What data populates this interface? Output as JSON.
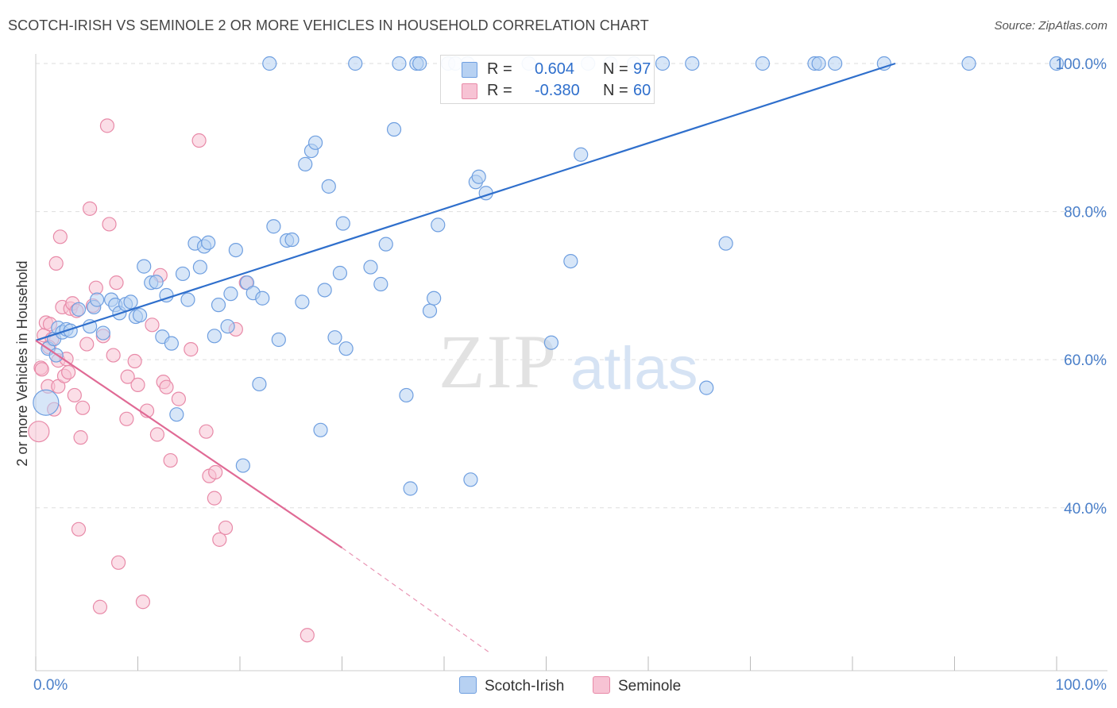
{
  "title": "SCOTCH-IRISH VS SEMINOLE 2 OR MORE VEHICLES IN HOUSEHOLD CORRELATION CHART",
  "source": "Source: ZipAtlas.com",
  "watermark": {
    "zip": "ZIP",
    "atlas": "atlas"
  },
  "legend": {
    "series1": {
      "r_label": "R =",
      "r_value": "0.604",
      "n_label": "N =",
      "n_value": "97"
    },
    "series2": {
      "r_label": "R =",
      "r_value": "-0.380",
      "n_label": "N =",
      "n_value": "60"
    }
  },
  "bottom_legend": {
    "series1": "Scotch-Irish",
    "series2": "Seminole"
  },
  "colors": {
    "blue_fill": "#b7d1f2",
    "blue_stroke": "#6f9fe0",
    "blue_line": "#2f6fcc",
    "pink_fill": "#f7c3d4",
    "pink_stroke": "#e88aa8",
    "pink_line": "#e06a95",
    "tick_text": "#4a7fc9",
    "grid": "#dddddd"
  },
  "chart_data": {
    "type": "scatter",
    "title": "SCOTCH-IRISH VS SEMINOLE 2 OR MORE VEHICLES IN HOUSEHOLD CORRELATION CHART",
    "xlabel": "",
    "ylabel": "2 or more Vehicles in Household",
    "xlim": [
      0,
      100
    ],
    "ylim": [
      18,
      100
    ],
    "x_tick_labels": [
      "0.0%",
      "100.0%"
    ],
    "y_ticks": [
      40,
      60,
      80,
      100
    ],
    "y_tick_labels": [
      "40.0%",
      "60.0%",
      "80.0%",
      "100.0%"
    ],
    "series": [
      {
        "name": "Scotch-Irish",
        "R": 0.604,
        "N": 97,
        "trend": {
          "x": [
            0,
            84.2
          ],
          "y": [
            62.6,
            100
          ]
        },
        "points": [
          [
            1.2,
            61.5
          ],
          [
            1.8,
            62.8
          ],
          [
            2.2,
            64.3
          ],
          [
            2.6,
            63.7
          ],
          [
            3.0,
            64.1
          ],
          [
            3.4,
            63.9
          ],
          [
            4.2,
            66.8
          ],
          [
            5.3,
            64.5
          ],
          [
            5.7,
            67.1
          ],
          [
            6.0,
            68.1
          ],
          [
            6.6,
            63.6
          ],
          [
            7.4,
            68.1
          ],
          [
            7.8,
            67.4
          ],
          [
            8.2,
            66.3
          ],
          [
            8.8,
            67.5
          ],
          [
            9.3,
            67.8
          ],
          [
            9.8,
            65.8
          ],
          [
            10.2,
            66.0
          ],
          [
            10.6,
            72.6
          ],
          [
            11.3,
            70.4
          ],
          [
            11.8,
            70.5
          ],
          [
            12.4,
            63.1
          ],
          [
            12.8,
            68.7
          ],
          [
            13.3,
            62.2
          ],
          [
            13.8,
            52.6
          ],
          [
            14.4,
            71.6
          ],
          [
            14.9,
            68.1
          ],
          [
            15.6,
            75.7
          ],
          [
            16.1,
            72.5
          ],
          [
            16.5,
            75.3
          ],
          [
            16.9,
            75.8
          ],
          [
            17.5,
            63.2
          ],
          [
            17.9,
            67.4
          ],
          [
            18.8,
            64.5
          ],
          [
            19.1,
            68.9
          ],
          [
            19.6,
            74.8
          ],
          [
            20.3,
            45.7
          ],
          [
            20.7,
            70.4
          ],
          [
            21.3,
            69.0
          ],
          [
            21.9,
            56.7
          ],
          [
            22.2,
            68.3
          ],
          [
            22.9,
            100
          ],
          [
            23.3,
            78.0
          ],
          [
            23.8,
            62.7
          ],
          [
            24.6,
            76.1
          ],
          [
            25.1,
            76.2
          ],
          [
            26.1,
            67.8
          ],
          [
            26.4,
            86.4
          ],
          [
            27.0,
            88.2
          ],
          [
            27.4,
            89.3
          ],
          [
            27.9,
            50.5
          ],
          [
            28.3,
            69.4
          ],
          [
            28.7,
            83.4
          ],
          [
            29.3,
            63.0
          ],
          [
            29.8,
            71.7
          ],
          [
            30.1,
            78.4
          ],
          [
            30.4,
            61.5
          ],
          [
            31.3,
            100
          ],
          [
            32.8,
            72.5
          ],
          [
            33.8,
            70.2
          ],
          [
            34.3,
            75.6
          ],
          [
            35.1,
            91.1
          ],
          [
            35.6,
            100
          ],
          [
            36.3,
            55.2
          ],
          [
            36.7,
            42.6
          ],
          [
            37.3,
            100
          ],
          [
            37.6,
            100
          ],
          [
            38.6,
            66.6
          ],
          [
            39.0,
            68.3
          ],
          [
            39.4,
            78.2
          ],
          [
            40.4,
            100
          ],
          [
            41.1,
            100
          ],
          [
            42.3,
            100
          ],
          [
            42.6,
            43.8
          ],
          [
            43.1,
            84.0
          ],
          [
            43.4,
            84.7
          ],
          [
            44.1,
            82.5
          ],
          [
            48.3,
            100
          ],
          [
            50.5,
            62.3
          ],
          [
            52.4,
            73.3
          ],
          [
            53.4,
            87.7
          ],
          [
            54.1,
            100
          ],
          [
            56.3,
            100
          ],
          [
            58.6,
            100
          ],
          [
            61.4,
            100
          ],
          [
            64.3,
            100
          ],
          [
            65.7,
            56.2
          ],
          [
            67.6,
            75.7
          ],
          [
            71.2,
            100
          ],
          [
            76.3,
            100
          ],
          [
            76.7,
            100
          ],
          [
            78.3,
            100
          ],
          [
            83.1,
            100
          ],
          [
            91.4,
            100
          ],
          [
            100,
            100
          ],
          [
            1.0,
            54.2
          ],
          [
            2.0,
            60.6
          ]
        ]
      },
      {
        "name": "Seminole",
        "R": -0.38,
        "N": 60,
        "trend": {
          "x": [
            0,
            30
          ],
          "y": [
            62.6,
            34.6
          ]
        },
        "trend_dashed": {
          "x": [
            30,
            44.4
          ],
          "y": [
            34.6,
            20.5
          ]
        },
        "points": [
          [
            0.3,
            50.3
          ],
          [
            0.5,
            58.9
          ],
          [
            0.8,
            63.3
          ],
          [
            1.0,
            65.0
          ],
          [
            1.2,
            56.4
          ],
          [
            1.4,
            64.8
          ],
          [
            1.6,
            62.8
          ],
          [
            1.8,
            53.3
          ],
          [
            2.0,
            73.0
          ],
          [
            2.2,
            59.9
          ],
          [
            2.2,
            56.4
          ],
          [
            2.4,
            76.6
          ],
          [
            2.6,
            67.1
          ],
          [
            2.8,
            57.8
          ],
          [
            3.0,
            60.1
          ],
          [
            3.2,
            58.3
          ],
          [
            3.4,
            66.9
          ],
          [
            3.6,
            67.6
          ],
          [
            3.8,
            55.2
          ],
          [
            4.0,
            66.6
          ],
          [
            4.2,
            37.1
          ],
          [
            4.4,
            49.5
          ],
          [
            4.6,
            53.5
          ],
          [
            5.0,
            62.1
          ],
          [
            5.3,
            80.4
          ],
          [
            5.6,
            67.3
          ],
          [
            5.9,
            69.7
          ],
          [
            6.3,
            26.6
          ],
          [
            6.6,
            63.2
          ],
          [
            7.0,
            91.6
          ],
          [
            7.2,
            78.3
          ],
          [
            7.6,
            60.6
          ],
          [
            7.9,
            70.4
          ],
          [
            8.1,
            32.6
          ],
          [
            8.9,
            52.0
          ],
          [
            9.0,
            57.7
          ],
          [
            9.7,
            59.8
          ],
          [
            10.0,
            56.6
          ],
          [
            10.5,
            27.3
          ],
          [
            10.9,
            53.1
          ],
          [
            11.4,
            64.7
          ],
          [
            11.9,
            49.9
          ],
          [
            12.2,
            71.4
          ],
          [
            12.5,
            57.0
          ],
          [
            12.8,
            56.3
          ],
          [
            13.2,
            46.4
          ],
          [
            14.0,
            54.7
          ],
          [
            15.2,
            61.4
          ],
          [
            16.0,
            89.6
          ],
          [
            16.7,
            50.3
          ],
          [
            17.0,
            44.3
          ],
          [
            17.5,
            41.3
          ],
          [
            17.6,
            44.8
          ],
          [
            18.0,
            35.7
          ],
          [
            18.6,
            37.3
          ],
          [
            19.6,
            64.1
          ],
          [
            20.6,
            70.4
          ],
          [
            26.6,
            22.8
          ],
          [
            1.3,
            61.7
          ],
          [
            0.6,
            58.7
          ]
        ]
      }
    ]
  }
}
